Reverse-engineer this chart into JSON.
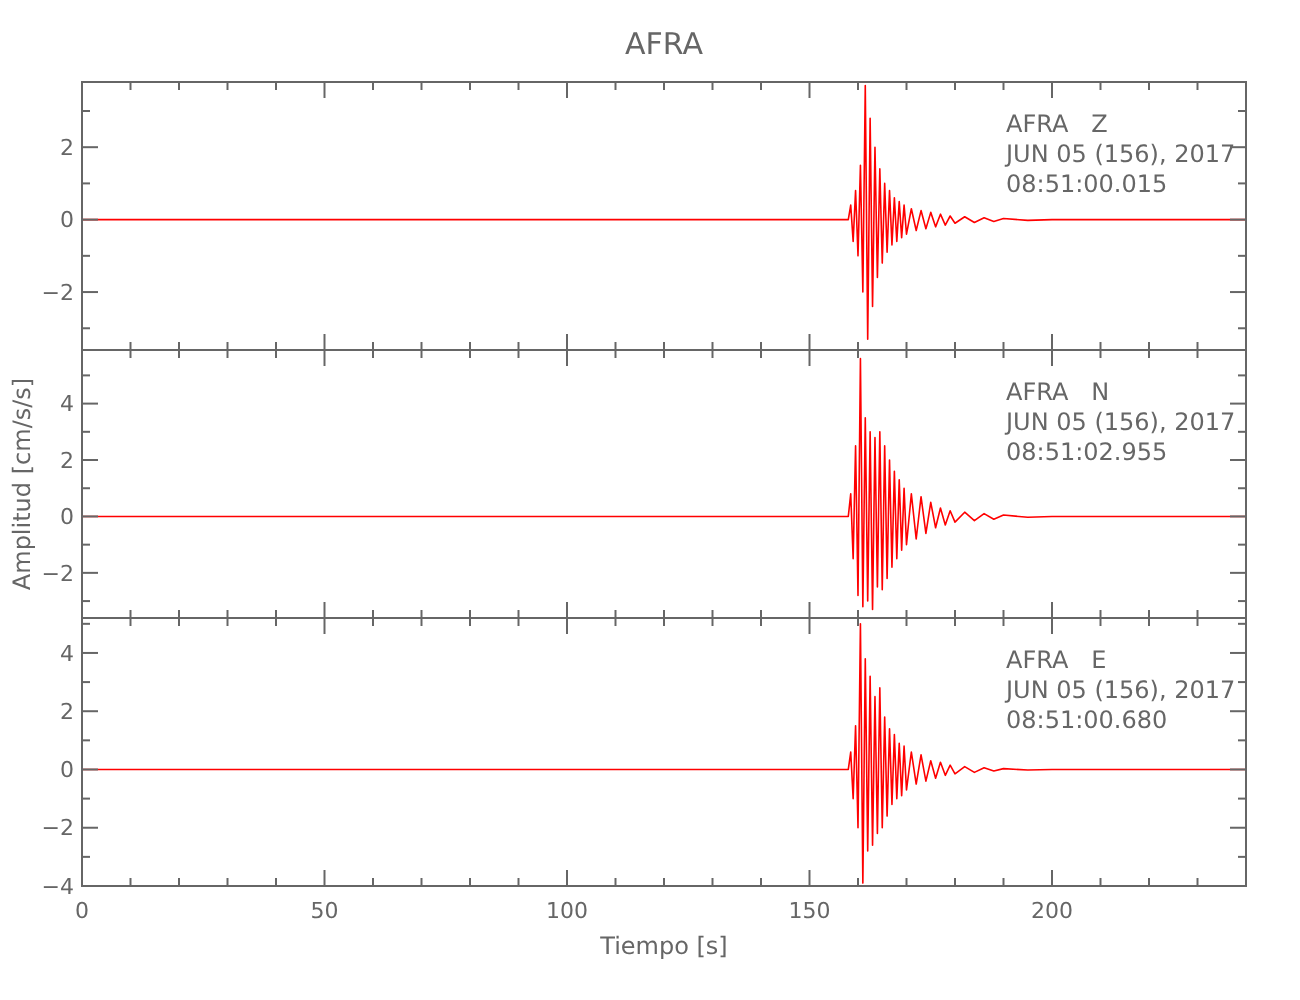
{
  "chart_data": [
    {
      "type": "line",
      "title": "AFRA",
      "annotations": [
        "AFRA   Z",
        "JUN 05 (156), 2017",
        "08:51:00.015"
      ],
      "tick_labels": "y",
      "grid": false,
      "xlim": [
        0,
        240
      ],
      "xticks": [
        0,
        {
          "value": 10,
          "label": null
        },
        {
          "value": 20,
          "label": null
        },
        {
          "value": 30,
          "label": null
        },
        {
          "value": 40,
          "label": null
        },
        50,
        {
          "value": 60,
          "label": null
        },
        {
          "value": 70,
          "label": null
        },
        {
          "value": 80,
          "label": null
        },
        {
          "value": 90,
          "label": null
        },
        100,
        {
          "value": 110,
          "label": null
        },
        {
          "value": 120,
          "label": null
        },
        {
          "value": 130,
          "label": null
        },
        {
          "value": 140,
          "label": null
        },
        150,
        {
          "value": 160,
          "label": null
        },
        {
          "value": 170,
          "label": null
        },
        {
          "value": 180,
          "label": null
        },
        {
          "value": 190,
          "label": null
        },
        200,
        {
          "value": 210,
          "label": null
        },
        {
          "value": 220,
          "label": null
        },
        {
          "value": 230,
          "label": null
        },
        {
          "value": 240,
          "label": null
        }
      ],
      "ylim": [
        -3.6,
        3.8
      ],
      "yticks": [
        {
          "value": -3,
          "label": null
        },
        -2,
        {
          "value": -1,
          "label": null
        },
        0,
        {
          "value": 1,
          "label": null
        },
        2,
        {
          "value": 3,
          "label": null
        }
      ],
      "x": [
        0,
        158,
        158.5,
        159,
        159.5,
        160,
        160.5,
        161,
        161.5,
        162,
        162.5,
        163,
        163.5,
        164,
        164.5,
        165,
        165.5,
        166,
        166.5,
        167,
        167.5,
        168,
        168.5,
        169,
        169.5,
        170,
        171,
        172,
        173,
        174,
        175,
        176,
        177,
        178,
        179,
        180,
        182,
        184,
        186,
        188,
        190,
        195,
        200,
        240
      ],
      "series": [
        {
          "color": "#ff0000",
          "values": [
            0,
            0,
            0.4,
            -0.6,
            0.8,
            -1.0,
            1.5,
            -2.0,
            3.7,
            -3.3,
            2.8,
            -2.4,
            2.0,
            -1.6,
            1.4,
            -1.2,
            1.0,
            -0.9,
            0.8,
            -0.7,
            0.6,
            -0.6,
            0.5,
            -0.5,
            0.4,
            -0.4,
            0.3,
            -0.3,
            0.25,
            -0.25,
            0.2,
            -0.2,
            0.15,
            -0.15,
            0.1,
            -0.1,
            0.08,
            -0.08,
            0.05,
            -0.05,
            0.03,
            -0.02,
            0,
            0
          ]
        }
      ]
    },
    {
      "type": "line",
      "ylabel": "Amplitud [cm/s/s]",
      "annotations": [
        "AFRA   N",
        "JUN 05 (156), 2017",
        "08:51:02.955"
      ],
      "tick_labels": "y",
      "grid": false,
      "xlim": [
        0,
        240
      ],
      "xticks": [
        0,
        {
          "value": 10,
          "label": null
        },
        {
          "value": 20,
          "label": null
        },
        {
          "value": 30,
          "label": null
        },
        {
          "value": 40,
          "label": null
        },
        50,
        {
          "value": 60,
          "label": null
        },
        {
          "value": 70,
          "label": null
        },
        {
          "value": 80,
          "label": null
        },
        {
          "value": 90,
          "label": null
        },
        100,
        {
          "value": 110,
          "label": null
        },
        {
          "value": 120,
          "label": null
        },
        {
          "value": 130,
          "label": null
        },
        {
          "value": 140,
          "label": null
        },
        150,
        {
          "value": 160,
          "label": null
        },
        {
          "value": 170,
          "label": null
        },
        {
          "value": 180,
          "label": null
        },
        {
          "value": 190,
          "label": null
        },
        200,
        {
          "value": 210,
          "label": null
        },
        {
          "value": 220,
          "label": null
        },
        {
          "value": 230,
          "label": null
        },
        {
          "value": 240,
          "label": null
        }
      ],
      "ylim": [
        -3.6,
        5.9
      ],
      "yticks": [
        {
          "value": -3,
          "label": null
        },
        -2,
        {
          "value": -1,
          "label": null
        },
        0,
        {
          "value": 1,
          "label": null
        },
        2,
        {
          "value": 3,
          "label": null
        },
        4,
        {
          "value": 5,
          "label": null
        }
      ],
      "x": [
        0,
        158,
        158.5,
        159,
        159.5,
        160,
        160.5,
        161,
        161.5,
        162,
        162.5,
        163,
        163.5,
        164,
        164.5,
        165,
        165.5,
        166,
        166.5,
        167,
        167.5,
        168,
        168.5,
        169,
        169.5,
        170,
        171,
        172,
        173,
        174,
        175,
        176,
        177,
        178,
        179,
        180,
        182,
        184,
        186,
        188,
        190,
        195,
        200,
        240
      ],
      "series": [
        {
          "color": "#ff0000",
          "values": [
            0,
            0,
            0.8,
            -1.5,
            2.5,
            -2.8,
            5.6,
            -3.2,
            3.5,
            -3.0,
            3.0,
            -3.3,
            2.8,
            -2.5,
            3.0,
            -2.6,
            2.5,
            -2.2,
            2.0,
            -1.8,
            1.6,
            -1.5,
            1.3,
            -1.2,
            1.0,
            -1.0,
            0.8,
            -0.8,
            0.7,
            -0.6,
            0.5,
            -0.4,
            0.3,
            -0.3,
            0.2,
            -0.2,
            0.15,
            -0.15,
            0.1,
            -0.1,
            0.05,
            -0.03,
            0,
            0
          ]
        }
      ]
    },
    {
      "type": "line",
      "xlabel": "Tiempo [s]",
      "annotations": [
        "AFRA   E",
        "JUN 05 (156), 2017",
        "08:51:00.680"
      ],
      "grid": false,
      "xlim": [
        0,
        240
      ],
      "xticks": [
        0,
        {
          "value": 10,
          "label": null
        },
        {
          "value": 20,
          "label": null
        },
        {
          "value": 30,
          "label": null
        },
        {
          "value": 40,
          "label": null
        },
        50,
        {
          "value": 60,
          "label": null
        },
        {
          "value": 70,
          "label": null
        },
        {
          "value": 80,
          "label": null
        },
        {
          "value": 90,
          "label": null
        },
        100,
        {
          "value": 110,
          "label": null
        },
        {
          "value": 120,
          "label": null
        },
        {
          "value": 130,
          "label": null
        },
        {
          "value": 140,
          "label": null
        },
        150,
        {
          "value": 160,
          "label": null
        },
        {
          "value": 170,
          "label": null
        },
        {
          "value": 180,
          "label": null
        },
        {
          "value": 190,
          "label": null
        },
        200,
        {
          "value": 210,
          "label": null
        },
        {
          "value": 220,
          "label": null
        },
        {
          "value": 230,
          "label": null
        },
        {
          "value": 240,
          "label": null
        }
      ],
      "ylim": [
        -4,
        5.2
      ],
      "yticks": [
        -4,
        {
          "value": -3,
          "label": null
        },
        -2,
        {
          "value": -1,
          "label": null
        },
        0,
        {
          "value": 1,
          "label": null
        },
        2,
        {
          "value": 3,
          "label": null
        },
        4,
        {
          "value": 5,
          "label": null
        }
      ],
      "x": [
        0,
        158,
        158.5,
        159,
        159.5,
        160,
        160.5,
        161,
        161.5,
        162,
        162.5,
        163,
        163.5,
        164,
        164.5,
        165,
        165.5,
        166,
        166.5,
        167,
        167.5,
        168,
        168.5,
        169,
        169.5,
        170,
        171,
        172,
        173,
        174,
        175,
        176,
        177,
        178,
        179,
        180,
        182,
        184,
        186,
        188,
        190,
        195,
        200,
        240
      ],
      "series": [
        {
          "color": "#ff0000",
          "values": [
            0,
            0,
            0.6,
            -1.0,
            1.5,
            -2.0,
            5.0,
            -3.9,
            3.8,
            -2.8,
            3.2,
            -2.6,
            2.5,
            -2.2,
            2.8,
            -2.0,
            1.8,
            -1.6,
            1.4,
            -1.2,
            1.2,
            -1.0,
            0.9,
            -0.9,
            0.8,
            -0.7,
            0.6,
            -0.5,
            0.5,
            -0.4,
            0.3,
            -0.3,
            0.25,
            -0.2,
            0.15,
            -0.15,
            0.1,
            -0.1,
            0.06,
            -0.05,
            0.03,
            -0.02,
            0,
            0
          ]
        }
      ]
    }
  ]
}
